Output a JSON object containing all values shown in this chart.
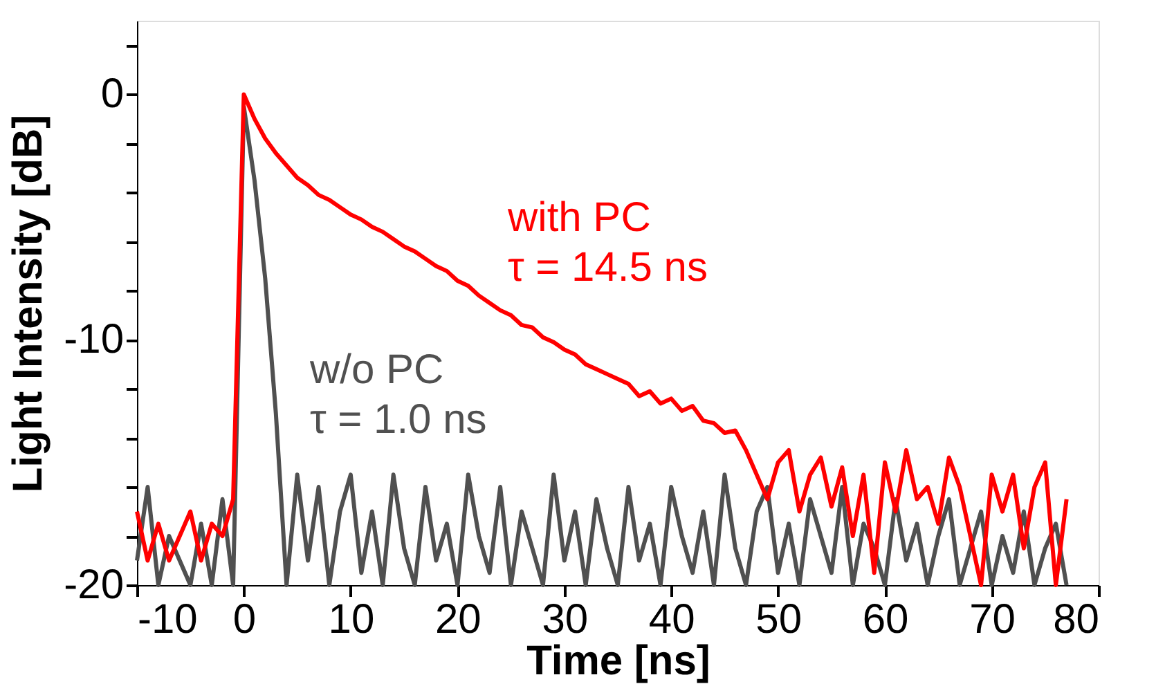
{
  "chart_data": {
    "type": "line",
    "xlabel": "Time [ns]",
    "ylabel": "Light Intensity [dB]",
    "x": [
      -10,
      -9,
      -8,
      -7,
      -6,
      -5,
      -4,
      -3,
      -2,
      -1,
      0,
      1,
      2,
      3,
      4,
      5,
      6,
      7,
      8,
      9,
      10,
      11,
      12,
      13,
      14,
      15,
      16,
      17,
      18,
      19,
      20,
      21,
      22,
      23,
      24,
      25,
      26,
      27,
      28,
      29,
      30,
      31,
      32,
      33,
      34,
      35,
      36,
      37,
      38,
      39,
      40,
      41,
      42,
      43,
      44,
      45,
      46,
      47,
      48,
      49,
      50,
      51,
      52,
      53,
      54,
      55,
      56,
      57,
      58,
      59,
      60,
      61,
      62,
      63,
      64,
      65,
      66,
      67,
      68,
      69,
      70,
      71,
      72,
      73,
      74,
      75,
      76,
      77
    ],
    "series": [
      {
        "name": "w/o PC",
        "color": "#505050",
        "values": [
          -19,
          -16,
          -20,
          -18,
          -19,
          -20,
          -17.5,
          -20,
          -16.5,
          -20,
          -0.5,
          -3.5,
          -7.5,
          -13,
          -20,
          -15.5,
          -19,
          -16,
          -20,
          -17,
          -15.5,
          -19.5,
          -17,
          -20,
          -15.5,
          -18.5,
          -20,
          -16,
          -19,
          -17.5,
          -20,
          -15.5,
          -18,
          -19.5,
          -16,
          -20,
          -17,
          -18.5,
          -20,
          -15.5,
          -19,
          -17,
          -20,
          -16.5,
          -18.5,
          -20,
          -16,
          -19,
          -17.5,
          -20,
          -16,
          -18,
          -19.5,
          -17,
          -20,
          -15.5,
          -18.5,
          -20,
          -17,
          -16,
          -19.5,
          -17.5,
          -20,
          -16.5,
          -18,
          -19.5,
          -16,
          -20,
          -17.5,
          -18.5,
          -20,
          -16.5,
          -19,
          -17.5,
          -20,
          -18,
          -16.5,
          -20,
          -18.5,
          -17,
          -20,
          -18,
          -19.5,
          -17,
          -20,
          -18.5,
          -17.5,
          -20
        ]
      },
      {
        "name": "with PC",
        "color": "#ff0000",
        "values": [
          -17,
          -19,
          -17.5,
          -19,
          -18,
          -17,
          -19,
          -17.5,
          -18,
          -16.5,
          0,
          -1,
          -1.8,
          -2.4,
          -2.9,
          -3.4,
          -3.7,
          -4.1,
          -4.3,
          -4.6,
          -4.9,
          -5.1,
          -5.4,
          -5.6,
          -5.9,
          -6.2,
          -6.4,
          -6.7,
          -7,
          -7.2,
          -7.6,
          -7.8,
          -8.2,
          -8.5,
          -8.8,
          -9,
          -9.4,
          -9.5,
          -9.9,
          -10.1,
          -10.4,
          -10.6,
          -11,
          -11.2,
          -11.4,
          -11.6,
          -11.8,
          -12.3,
          -12.1,
          -12.6,
          -12.4,
          -12.9,
          -12.7,
          -13.3,
          -13.4,
          -13.8,
          -13.7,
          -14.5,
          -15.5,
          -16.5,
          -15,
          -14.5,
          -17,
          -15.5,
          -14.8,
          -16.8,
          -15.2,
          -18,
          -15.5,
          -19.5,
          -15,
          -17,
          -14.5,
          -16.5,
          -16,
          -17.5,
          -14.8,
          -16,
          -18,
          -20,
          -15.5,
          -17,
          -15.5,
          -18.5,
          -16,
          -15,
          -20,
          -16.5
        ]
      }
    ],
    "annotations": [
      "τ = 1.0 ns",
      "τ = 14.5 ns"
    ],
    "xlim": [
      -10,
      80
    ],
    "xticks": [
      -10,
      0,
      10,
      20,
      30,
      40,
      50,
      60,
      70,
      80
    ],
    "ylim": [
      -20,
      3
    ],
    "yticks": [
      {
        "value": 2,
        "label": null
      },
      0,
      {
        "value": -2,
        "label": null
      },
      {
        "value": -4,
        "label": null
      },
      {
        "value": -6,
        "label": null
      },
      {
        "value": -8,
        "label": null
      },
      -10,
      {
        "value": -12,
        "label": null
      },
      {
        "value": -14,
        "label": null
      },
      {
        "value": -16,
        "label": null
      },
      {
        "value": -18,
        "label": null
      },
      -20
    ],
    "grid": false,
    "legend": false,
    "line_style": "solid",
    "marker": "none"
  }
}
